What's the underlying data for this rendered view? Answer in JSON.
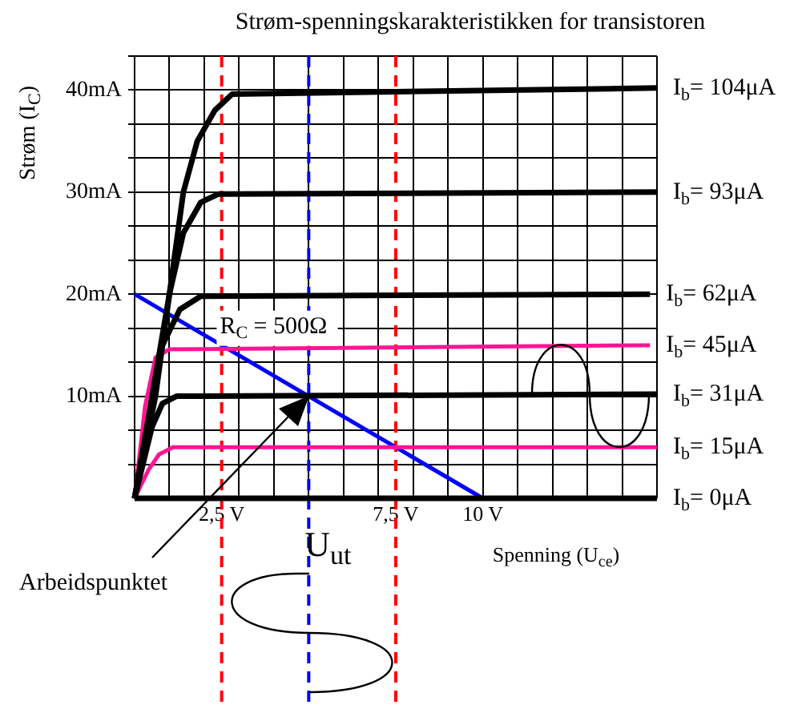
{
  "chart_data": {
    "type": "line",
    "title": "Strøm-spenningskarakteristikken for transistoren",
    "xlabel": "Spenning (U$_{ce}$)",
    "ylabel": "Strøm (I$_{C}$)",
    "xlim": [
      0,
      15
    ],
    "ylim": [
      0,
      43.33
    ],
    "xticks": [
      {
        "value": 0,
        "label": null
      },
      {
        "value": 1,
        "label": null
      },
      {
        "value": 2,
        "label": null
      },
      {
        "value": 2.5,
        "label": "2,5 V"
      },
      {
        "value": 3,
        "label": null
      },
      {
        "value": 4,
        "label": null
      },
      {
        "value": 5,
        "label": null
      },
      {
        "value": 6,
        "label": null
      },
      {
        "value": 7,
        "label": null
      },
      {
        "value": 7.5,
        "label": "7,5 V"
      },
      {
        "value": 8,
        "label": null
      },
      {
        "value": 9,
        "label": null
      },
      {
        "value": 10,
        "label": "10 V"
      },
      {
        "value": 11,
        "label": null
      },
      {
        "value": 12,
        "label": null
      },
      {
        "value": 13,
        "label": null
      },
      {
        "value": 14,
        "label": null
      },
      {
        "value": 15,
        "label": null
      }
    ],
    "yticks": [
      {
        "value": 0,
        "label": null
      },
      {
        "value": 3.33,
        "label": null
      },
      {
        "value": 6.67,
        "label": null
      },
      {
        "value": 10,
        "label": "10mA"
      },
      {
        "value": 13.33,
        "label": null
      },
      {
        "value": 16.67,
        "label": null
      },
      {
        "value": 20,
        "label": "20mA"
      },
      {
        "value": 23.33,
        "label": null
      },
      {
        "value": 26.67,
        "label": null
      },
      {
        "value": 30,
        "label": "30mA"
      },
      {
        "value": 33.33,
        "label": null
      },
      {
        "value": 36.67,
        "label": null
      },
      {
        "value": 40,
        "label": "40mA"
      },
      {
        "value": 43.33,
        "label": null
      }
    ],
    "grid": true,
    "legend": false,
    "marker": "none",
    "line_style": "solid",
    "series": [
      {
        "name": "I$_{b}$= 104μA",
        "color": "#000000",
        "x": [
          0,
          0.6,
          1,
          1.4,
          1.8,
          2.3,
          2.8,
          15
        ],
        "values": [
          0,
          10,
          20,
          30,
          35,
          38,
          39.6,
          40.2
        ]
      },
      {
        "name": "I$_{b}$= 93μA",
        "color": "#000000",
        "x": [
          0,
          1,
          1.4,
          1.9,
          2.4,
          15
        ],
        "values": [
          0,
          20,
          26,
          29,
          29.8,
          30
        ]
      },
      {
        "name": "I$_{b}$= 62μA",
        "color": "#000000",
        "x": [
          0,
          0.8,
          1.3,
          1.9,
          14.8
        ],
        "values": [
          0,
          15,
          18.5,
          19.8,
          20
        ]
      },
      {
        "name": "I$_{b}$= 45μA",
        "color": "#ff1493",
        "x": [
          0,
          0.3,
          0.6,
          1,
          14.8
        ],
        "values": [
          0,
          9,
          13.8,
          14.6,
          15
        ]
      },
      {
        "name": "I$_{b}$= 31μA",
        "color": "#000000",
        "x": [
          0,
          0.5,
          0.8,
          1.2,
          15
        ],
        "values": [
          0,
          7,
          9.3,
          10,
          10.2
        ]
      },
      {
        "name": "I$_{b}$= 15μA",
        "color": "#ff1493",
        "x": [
          0,
          0.4,
          0.7,
          1.1,
          15
        ],
        "values": [
          0,
          2.8,
          4.3,
          5,
          5
        ]
      },
      {
        "name": "I$_{b}$= 0μA",
        "color": "#000000",
        "x": [
          0,
          15
        ],
        "values": [
          0,
          0
        ]
      },
      {
        "color": "#0000ff",
        "x": [
          0,
          10
        ],
        "values": [
          20,
          0
        ]
      }
    ],
    "ref_lines": [
      {
        "axis": "x",
        "value": 2.5,
        "color": "#ff0000",
        "line_style": "dashed"
      },
      {
        "axis": "x",
        "value": 7.5,
        "color": "#ff0000",
        "line_style": "dashed"
      },
      {
        "axis": "x",
        "value": 5,
        "label": "U$_{ut}$",
        "color": "#0000ff",
        "line_style": "dashed"
      }
    ],
    "annotations": [
      {
        "text": "R$_{C}$ = 500Ω",
        "x": 3,
        "y": 14
      },
      "Arbeidspunktet"
    ]
  }
}
